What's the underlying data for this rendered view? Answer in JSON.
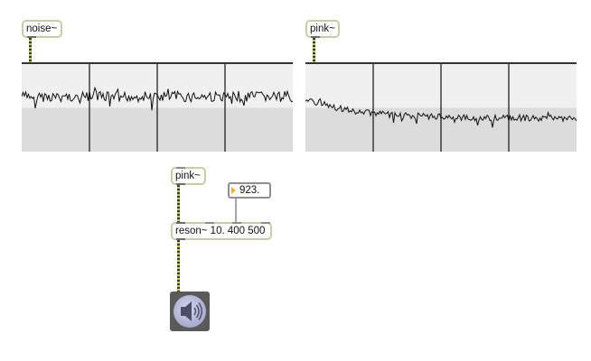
{
  "objects": {
    "noise1": {
      "label": "noise~"
    },
    "pink1": {
      "label": "pink~"
    },
    "pink2": {
      "label": "pink~"
    },
    "reson": {
      "label": "reson~ 10. 400 500"
    },
    "number": {
      "value": "923."
    }
  },
  "ezdac": {
    "icon": "speaker-icon"
  },
  "colors": {
    "object_border": "#c4cfa6",
    "signal_cord": "#b8cc4a",
    "numbox_triangle": "#e7b52a"
  }
}
